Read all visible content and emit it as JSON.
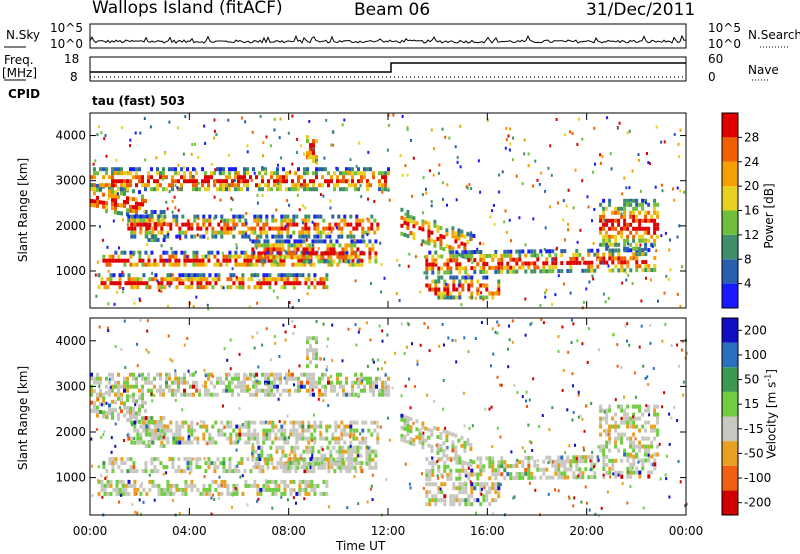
{
  "header": {
    "site": "Wallops Island (fitACF)",
    "beam": "Beam 06",
    "date": "31/Dec/2011"
  },
  "top_panels": {
    "nsky_label": "N.Sky",
    "nsearch_label": "N.Search",
    "nsky_ticks": [
      "10^5",
      "10^0"
    ],
    "nsearch_ticks": [
      "10^5",
      "10^0"
    ],
    "freq_label": "Freq.",
    "freq_unit": "[MHz]",
    "freq_ticks": [
      "18",
      "8"
    ],
    "nave_label": "Nave",
    "nave_ticks": [
      "60",
      "0"
    ],
    "cpid_label": "CPID",
    "cpid_value": "tau (fast) 503"
  },
  "chart_data": [
    {
      "type": "heatmap",
      "ylabel": "Slant Range [km]",
      "xlabel": "",
      "x_ticks": [
        "00:00",
        "04:00",
        "08:00",
        "12:00",
        "16:00",
        "20:00",
        "00:00"
      ],
      "y_ticks": [
        1000,
        2000,
        3000,
        4000
      ],
      "ylim": [
        180,
        4500
      ],
      "colorbar": {
        "label": "Power [dB]",
        "ticks": [
          "4",
          "8",
          "12",
          "16",
          "20",
          "24",
          "28"
        ],
        "colors": [
          "#1a1aff",
          "#2a5fb0",
          "#3f8f6a",
          "#6fbf3a",
          "#e8d020",
          "#f5a000",
          "#f06000",
          "#e00000"
        ]
      }
    },
    {
      "type": "heatmap",
      "ylabel": "Slant Range [km]",
      "xlabel": "Time UT",
      "x_ticks": [
        "00:00",
        "04:00",
        "08:00",
        "12:00",
        "16:00",
        "20:00",
        "00:00"
      ],
      "y_ticks": [
        1000,
        2000,
        3000,
        4000
      ],
      "ylim": [
        180,
        4500
      ],
      "colorbar": {
        "label": "Velocity [m s⁻¹]",
        "ticks": [
          "200",
          "100",
          "50",
          "15",
          "-15",
          "-50",
          "-100",
          "-200"
        ],
        "colors": [
          "#1010c0",
          "#2a70c0",
          "#3c9a50",
          "#70cc40",
          "#c8c8c0",
          "#e8a020",
          "#f06010",
          "#d00000"
        ]
      }
    }
  ]
}
